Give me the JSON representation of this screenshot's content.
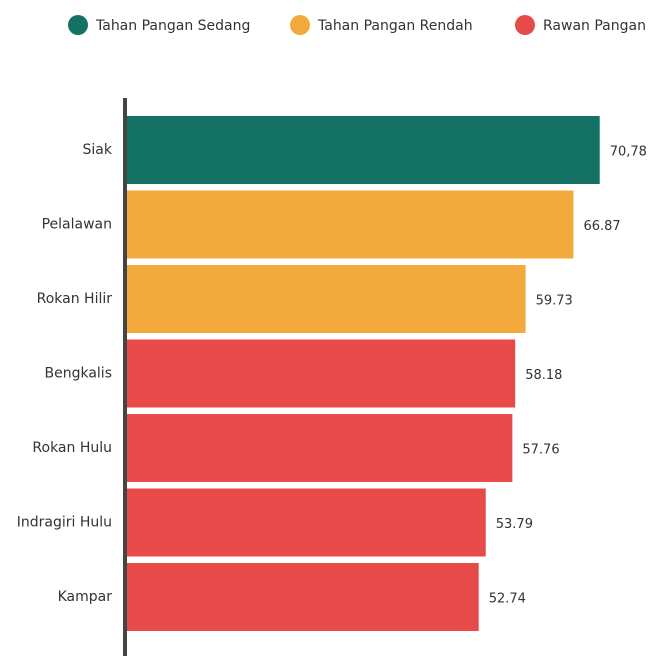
{
  "chart_data": {
    "type": "bar",
    "orientation": "horizontal",
    "categories": [
      "Siak",
      "Pelalawan",
      "Rokan Hilir",
      "Bengkalis",
      "Rokan Hulu",
      "Indragiri Hulu",
      "Kampar"
    ],
    "series": [
      {
        "name": "Tahan Pangan Sedang",
        "color": "#137264",
        "values": [
          70.78,
          null,
          null,
          null,
          null,
          null,
          null
        ],
        "value_labels": [
          "70,78",
          null,
          null,
          null,
          null,
          null,
          null
        ]
      },
      {
        "name": "Tahan Pangan Rendah",
        "color": "#f1aa3b",
        "values": [
          null,
          66.87,
          59.73,
          null,
          null,
          null,
          null
        ],
        "value_labels": [
          null,
          "66.87",
          "59.73",
          null,
          null,
          null,
          null
        ]
      },
      {
        "name": "Rawan Pangan",
        "color": "#e64b4a",
        "values": [
          null,
          null,
          null,
          58.18,
          57.76,
          53.79,
          52.74
        ],
        "value_labels": [
          null,
          null,
          null,
          "58.18",
          "57.76",
          "53.79",
          "52.74"
        ]
      }
    ],
    "xlim": [
      0,
      75
    ],
    "legend": "top"
  }
}
